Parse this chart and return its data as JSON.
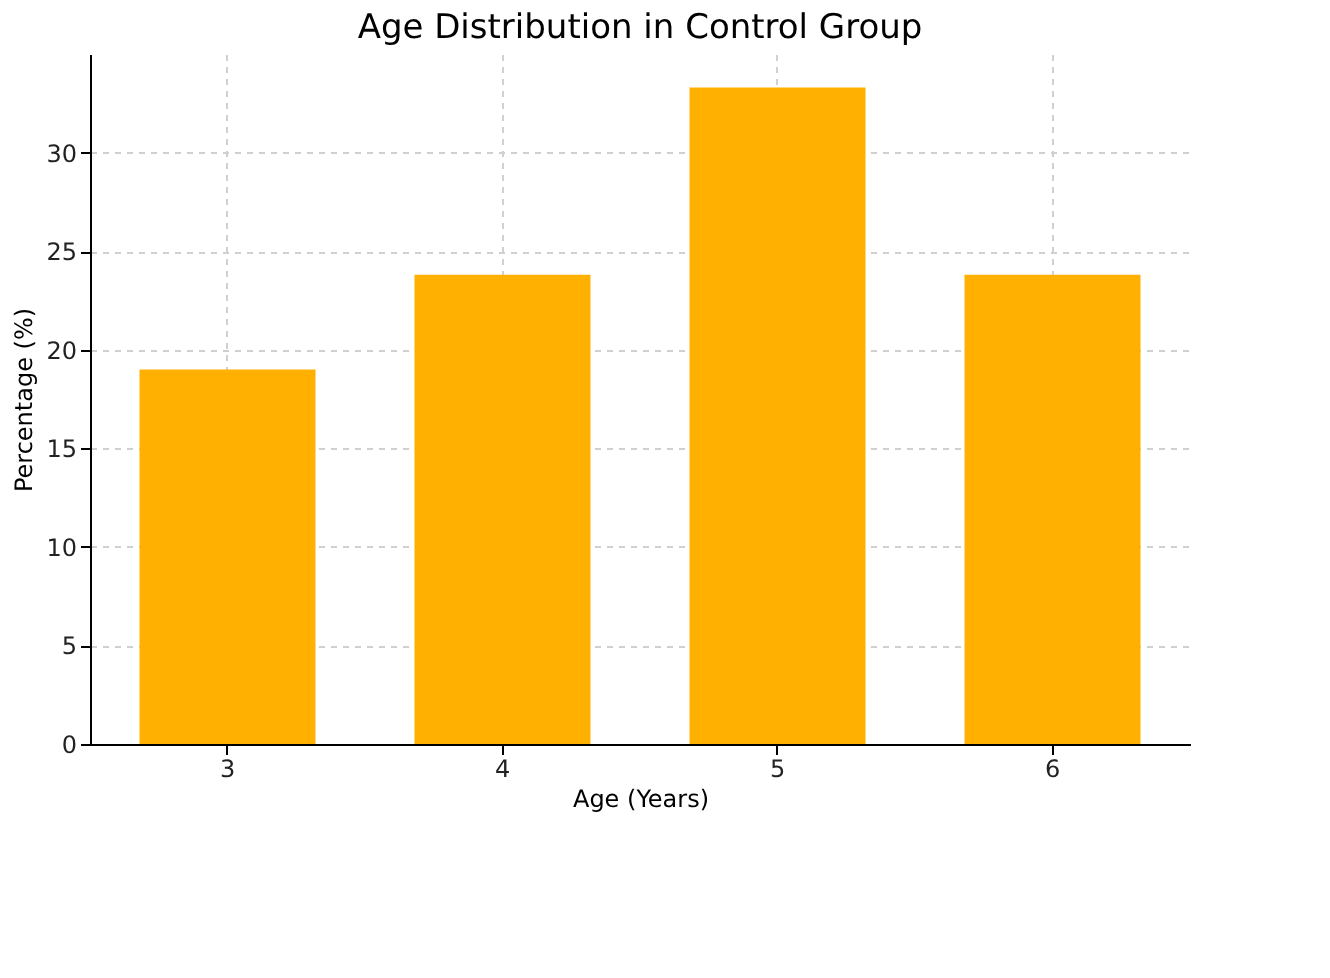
{
  "chart_data": {
    "type": "bar",
    "title": "Age Distribution in Control Group",
    "xlabel": "Age (Years)",
    "ylabel": "Percentage (%)",
    "categories": [
      "3",
      "4",
      "5",
      "6"
    ],
    "values": [
      19.0,
      23.8,
      33.3,
      23.8
    ],
    "color": "#ffb000",
    "ylim": [
      0,
      35
    ],
    "yticks": [
      0,
      5,
      10,
      15,
      20,
      25,
      30
    ],
    "grid": true
  }
}
